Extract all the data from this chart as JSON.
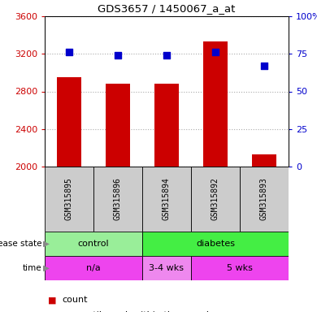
{
  "title": "GDS3657 / 1450067_a_at",
  "samples": [
    "GSM315895",
    "GSM315896",
    "GSM315894",
    "GSM315892",
    "GSM315893"
  ],
  "bar_values": [
    2950,
    2880,
    2880,
    3330,
    2130
  ],
  "percentile_values": [
    76,
    74,
    74,
    76,
    67
  ],
  "ylim_left": [
    2000,
    3600
  ],
  "ylim_right": [
    0,
    100
  ],
  "yticks_left": [
    2000,
    2400,
    2800,
    3200,
    3600
  ],
  "yticks_right": [
    0,
    25,
    50,
    75,
    100
  ],
  "bar_color": "#cc0000",
  "dot_color": "#0000cc",
  "disease_state_groups": [
    {
      "label": "control",
      "indices": [
        0,
        1
      ],
      "color": "#99ee99"
    },
    {
      "label": "diabetes",
      "indices": [
        2,
        3,
        4
      ],
      "color": "#44ee44"
    }
  ],
  "time_groups": [
    {
      "label": "n/a",
      "indices": [
        0,
        1
      ],
      "color": "#ee44ee"
    },
    {
      "label": "3-4 wks",
      "indices": [
        2
      ],
      "color": "#ee88ee"
    },
    {
      "label": "5 wks",
      "indices": [
        3,
        4
      ],
      "color": "#ee44ee"
    }
  ],
  "sample_bg_color": "#cccccc",
  "grid_color": "#aaaaaa",
  "background_color": "#ffffff"
}
